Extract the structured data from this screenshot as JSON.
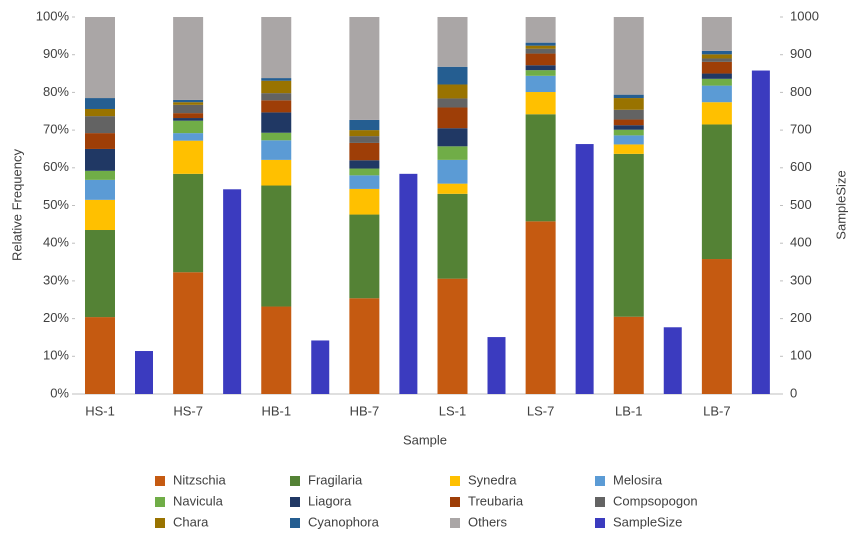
{
  "chart_data": {
    "type": "bar",
    "stacked": true,
    "legend": "bottom",
    "x_label": "Sample",
    "y_label": "Relative Frequency",
    "y2_label": "SampleSize",
    "categories": [
      "HS-1",
      "HS-7",
      "HB-1",
      "HB-7",
      "LS-1",
      "LS-7",
      "LB-1",
      "LB-7"
    ],
    "ylim": [
      0,
      100
    ],
    "yticks": [
      {
        "value": 0,
        "label": "0%"
      },
      {
        "value": 10,
        "label": "10%"
      },
      {
        "value": 20,
        "label": "20%"
      },
      {
        "value": 30,
        "label": "30%"
      },
      {
        "value": 40,
        "label": "40%"
      },
      {
        "value": 50,
        "label": "50%"
      },
      {
        "value": 60,
        "label": "60%"
      },
      {
        "value": 70,
        "label": "70%"
      },
      {
        "value": 80,
        "label": "80%"
      },
      {
        "value": 90,
        "label": "90%"
      },
      {
        "value": 100,
        "label": "100%"
      }
    ],
    "y2lim": [
      0,
      1000
    ],
    "y2ticks": [
      0,
      100,
      200,
      300,
      400,
      500,
      600,
      700,
      800,
      900,
      1000
    ],
    "series": [
      {
        "name": "Nitzschia",
        "color": "#c55a11",
        "values": [
          20.4,
          32.3,
          23.2,
          25.4,
          30.6,
          45.8,
          20.5,
          35.8
        ]
      },
      {
        "name": "Fragilaria",
        "color": "#548235",
        "values": [
          23.1,
          26.1,
          32.1,
          22.2,
          22.5,
          28.4,
          43.2,
          35.7
        ]
      },
      {
        "name": "Synedra",
        "color": "#ffc000",
        "values": [
          8,
          8.8,
          6.8,
          6.8,
          2.7,
          5.9,
          2.5,
          5.9
        ]
      },
      {
        "name": "Melosira",
        "color": "#5b9bd5",
        "values": [
          5.3,
          2,
          5.2,
          3.6,
          6.3,
          4.3,
          2.4,
          4.4
        ]
      },
      {
        "name": "Navicula",
        "color": "#70ad47",
        "values": [
          2.4,
          3.3,
          2,
          1.8,
          3.6,
          1.5,
          1.5,
          1.8
        ]
      },
      {
        "name": "Liagora",
        "color": "#203864",
        "values": [
          5.8,
          0.7,
          5.4,
          2.2,
          4.8,
          1.3,
          1.2,
          1.4
        ]
      },
      {
        "name": "Treubaria",
        "color": "#9e3e07",
        "values": [
          4.2,
          1.3,
          3.2,
          4.6,
          5.5,
          3.1,
          1.5,
          3.1
        ]
      },
      {
        "name": "Compsopogon",
        "color": "#636363",
        "values": [
          4.5,
          2.2,
          1.9,
          1.8,
          2.4,
          1.3,
          2.6,
          0.9
        ]
      },
      {
        "name": "Chara",
        "color": "#997300",
        "values": [
          1.9,
          0.7,
          3.3,
          1.6,
          3.7,
          0.8,
          3.1,
          1.1
        ]
      },
      {
        "name": "Cyanophora",
        "color": "#255e91",
        "values": [
          2.9,
          0.6,
          0.7,
          2.7,
          4.7,
          0.8,
          0.9,
          0.9
        ]
      },
      {
        "name": "Others",
        "color": "#aaa6a6",
        "values": [
          21.5,
          22,
          16.2,
          27.3,
          13.2,
          6.8,
          20.6,
          9
        ]
      },
      {
        "name": "SampleSize",
        "color": "#3b3bbf",
        "axis": "y2",
        "values": [
          114,
          543,
          142,
          584,
          151,
          663,
          177,
          858
        ]
      }
    ]
  }
}
